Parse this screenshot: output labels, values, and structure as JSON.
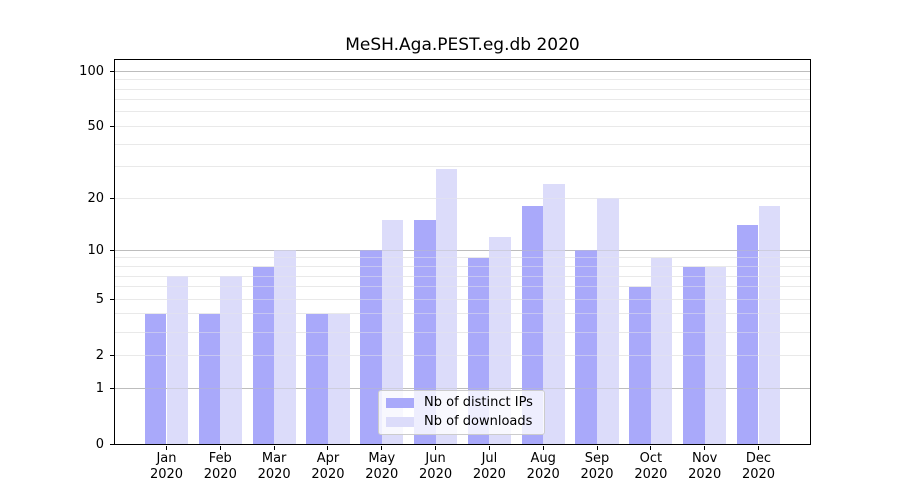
{
  "window": {
    "background": "#ffffff"
  },
  "chart_data": {
    "type": "bar",
    "title": "MeSH.Aga.PEST.eg.db 2020",
    "categories": [
      "Jan",
      "Feb",
      "Mar",
      "Apr",
      "May",
      "Jun",
      "Jul",
      "Aug",
      "Sep",
      "Oct",
      "Nov",
      "Dec"
    ],
    "category_year": "2020",
    "series": [
      {
        "name": "Nb of distinct IPs",
        "color": "#a9a9fa",
        "values": [
          4,
          4,
          8,
          4,
          10,
          15,
          9,
          18,
          10,
          6,
          8,
          14
        ]
      },
      {
        "name": "Nb of downloads",
        "color": "#dcdcfa",
        "values": [
          7,
          7,
          10,
          4,
          15,
          29,
          12,
          24,
          20,
          9,
          8,
          18
        ]
      }
    ],
    "xlabel": "",
    "ylabel": "",
    "yscale": "log1p",
    "ylim": [
      0,
      115
    ],
    "yticks": [
      0,
      1,
      2,
      5,
      10,
      20,
      50,
      100
    ],
    "grid": "on",
    "grid_major_values": [
      1,
      10,
      100
    ],
    "grid_minor_values": [
      2,
      3,
      4,
      5,
      6,
      7,
      8,
      9,
      20,
      30,
      40,
      50,
      60,
      70,
      80,
      90
    ],
    "grid_major_color": "#bdbdbd",
    "grid_minor_color": "#e9e9e9",
    "axis_color": "#000000",
    "legend_position": "lower center"
  }
}
